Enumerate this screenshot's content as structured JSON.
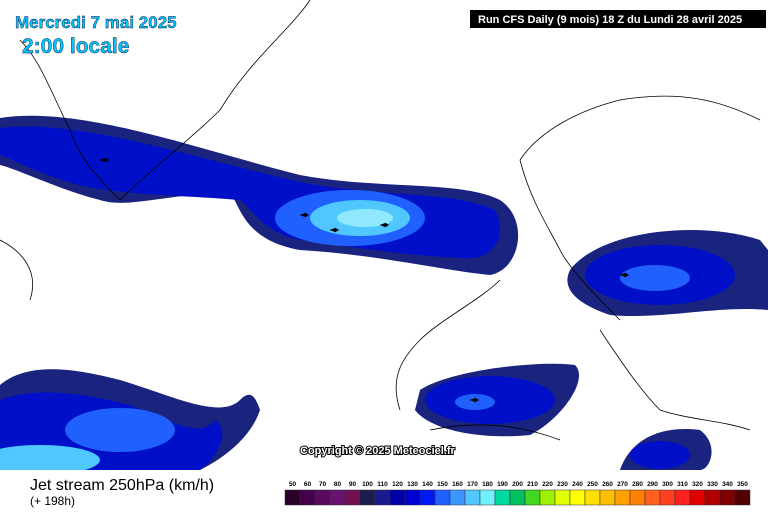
{
  "header": {
    "date": "Mercredi 7 mai 2025",
    "time": "2:00 locale",
    "run": "Run CFS Daily (9 mois) 18 Z du Lundi 28 avril 2025"
  },
  "map": {
    "copyright": "Copyright © 2025 Meteociel.fr"
  },
  "footer": {
    "title": "Jet stream 250hPa (km/h)",
    "lead": "(+ 198h)"
  },
  "legend": {
    "levels": [
      50,
      60,
      70,
      80,
      90,
      100,
      110,
      120,
      130,
      140,
      150,
      160,
      170,
      180,
      190,
      200,
      210,
      220,
      230,
      240,
      250,
      260,
      270,
      280,
      290,
      300,
      310,
      320,
      330,
      340,
      350
    ],
    "colors": [
      "#2a0028",
      "#44004a",
      "#5a0a5e",
      "#6a1070",
      "#701050",
      "#1c1c50",
      "#1a1a8c",
      "#0000a8",
      "#0000d0",
      "#0018f4",
      "#2060ff",
      "#3c96ff",
      "#50c8ff",
      "#6ef0ff",
      "#00d8a0",
      "#00c060",
      "#40d820",
      "#9ef000",
      "#e0ff00",
      "#ffff00",
      "#ffe000",
      "#ffc000",
      "#ffa000",
      "#ff8000",
      "#ff6020",
      "#ff4020",
      "#ff2020",
      "#e00000",
      "#b00000",
      "#800000",
      "#500000"
    ]
  }
}
